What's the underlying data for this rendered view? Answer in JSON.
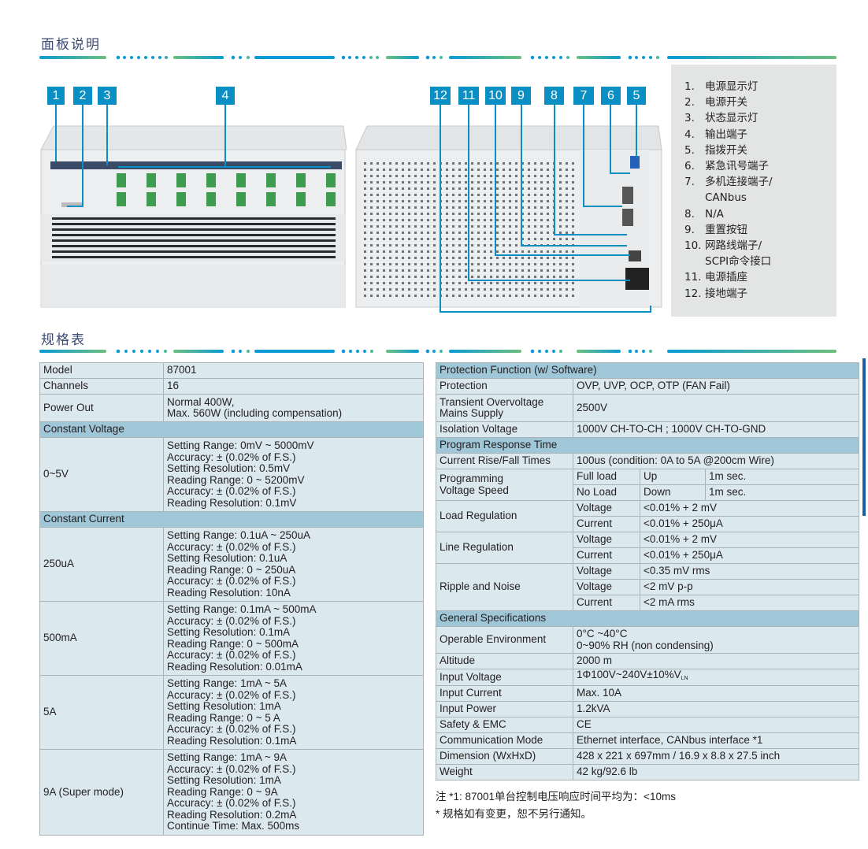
{
  "panel_section": {
    "title": "面板说明",
    "callouts": [
      "1",
      "2",
      "3",
      "4",
      "12",
      "11",
      "10",
      "9",
      "8",
      "7",
      "6",
      "5"
    ],
    "legend": [
      {
        "num": "1.",
        "text": "电源显示灯"
      },
      {
        "num": "2.",
        "text": "电源开关"
      },
      {
        "num": "3.",
        "text": "状态显示灯"
      },
      {
        "num": "4.",
        "text": "输出端子"
      },
      {
        "num": "5.",
        "text": "指拨开关"
      },
      {
        "num": "6.",
        "text": "紧急讯号端子"
      },
      {
        "num": "7.",
        "text": "多机连接端子/\nCANbus"
      },
      {
        "num": "8.",
        "text": "N/A"
      },
      {
        "num": "9.",
        "text": "重置按钮"
      },
      {
        "num": "10.",
        "text": "网路线端子/\nSCPI命令接口"
      },
      {
        "num": "11.",
        "text": "电源插座"
      },
      {
        "num": "12.",
        "text": "接地端子"
      }
    ]
  },
  "spec_section": {
    "title": "规格表",
    "left_table": [
      {
        "type": "row",
        "cells": [
          "Model",
          "87001"
        ]
      },
      {
        "type": "row",
        "cells": [
          "Channels",
          "16"
        ]
      },
      {
        "type": "row",
        "cells": [
          "Power Out",
          "Normal 400W,\nMax. 560W (including compensation)"
        ]
      },
      {
        "type": "header",
        "cells": [
          "Constant Voltage"
        ]
      },
      {
        "type": "row",
        "cells": [
          "0~5V",
          "Setting Range: 0mV ~ 5000mV\nAccuracy: ± (0.02% of F.S.)\nSetting Resolution: 0.5mV\nReading Range: 0 ~ 5200mV\nAccuracy: ± (0.02% of F.S.)\nReading Resolution: 0.1mV"
        ]
      },
      {
        "type": "header",
        "cells": [
          "Constant Current"
        ]
      },
      {
        "type": "row",
        "cells": [
          "250uA",
          "Setting Range: 0.1uA ~ 250uA\nAccuracy: ± (0.02% of F.S.)\nSetting Resolution: 0.1uA\nReading Range: 0 ~ 250uA\nAccuracy: ± (0.02% of F.S.)\nReading Resolution: 10nA"
        ]
      },
      {
        "type": "row",
        "cells": [
          "500mA",
          "Setting Range: 0.1mA ~ 500mA\nAccuracy: ± (0.02% of F.S.)\nSetting Resolution: 0.1mA\nReading Range: 0 ~ 500mA\nAccuracy: ± (0.02% of F.S.)\nReading Resolution: 0.01mA"
        ]
      },
      {
        "type": "row",
        "cells": [
          "5A",
          "Setting Range: 1mA ~ 5A\nAccuracy: ± (0.02% of F.S.)\nSetting Resolution: 1mA\nReading Range: 0 ~ 5 A\nAccuracy: ± (0.02% of F.S.)\nReading Resolution: 0.1mA"
        ]
      },
      {
        "type": "row",
        "cells": [
          "9A (Super mode)",
          "Setting Range: 1mA ~ 9A\nAccuracy: ± (0.02% of F.S.)\nSetting Resolution: 1mA\nReading Range: 0 ~ 9A\nAccuracy: ± (0.02% of F.S.)\nReading Resolution: 0.2mA\nContinue Time: Max. 500ms"
        ]
      }
    ],
    "right_table": {
      "protection_header": "Protection Function (w/ Software)",
      "protection": [
        "Protection",
        "OVP, UVP, OCP, OTP (FAN Fail)"
      ],
      "transient": [
        "Transient Overvoltage\nMains Supply",
        "2500V"
      ],
      "isolation": [
        "Isolation Voltage",
        "1000V CH-TO-CH ; 1000V CH-TO-GND"
      ],
      "response_header": "Program Response Time",
      "rise_fall": [
        "Current Rise/Fall Times",
        "100us (condition: 0A to 5A @200cm Wire)"
      ],
      "prog_speed_label": "Programming\nVoltage Speed",
      "prog_speed_rows": [
        [
          "Full load",
          "Up",
          "1m sec."
        ],
        [
          "No Load",
          "Down",
          "1m sec."
        ]
      ],
      "load_reg_label": "Load Regulation",
      "load_reg_rows": [
        [
          "Voltage",
          "<0.01% + 2 mV"
        ],
        [
          "Current",
          "<0.01% + 250μA"
        ]
      ],
      "line_reg_label": "Line Regulation",
      "line_reg_rows": [
        [
          "Voltage",
          "<0.01% + 2 mV"
        ],
        [
          "Current",
          "<0.01% + 250μA"
        ]
      ],
      "ripple_label": "Ripple and Noise",
      "ripple_rows": [
        [
          "Voltage",
          "<0.35 mV rms"
        ],
        [
          "Voltage",
          "<2 mV p-p"
        ],
        [
          "Current",
          "<2 mA rms"
        ]
      ],
      "general_header": "General Specifications",
      "general_rows": [
        [
          "Operable Environment",
          "0°C ~40°C\n0~90% RH (non condensing)"
        ],
        [
          "Altitude",
          "2000 m"
        ],
        [
          "Input Voltage",
          "1Φ100V~240V±10%V"
        ],
        [
          "Input Current",
          "Max. 10A"
        ],
        [
          "Input Power",
          "1.2kVA"
        ],
        [
          "Safety & EMC",
          "CE"
        ],
        [
          "Communication Mode",
          "Ethernet interface, CANbus interface *1"
        ],
        [
          "Dimension (WxHxD)",
          "428 x 221 x 697mm / 16.9 x 8.8 x 27.5 inch"
        ],
        [
          "Weight",
          "42 kg/92.6 lb"
        ]
      ],
      "input_voltage_subscript": "LN"
    },
    "notes": [
      "注 *1: 87001单台控制电压响应时间平均为：<10ms",
      "* 规格如有变更，恕不另行通知。"
    ]
  },
  "colors": {
    "accent": "#0a8fc4",
    "header_row": "#9fc7d7",
    "data_row": "#dbe8ee",
    "title": "#3a4a72",
    "legend_bg": "#e3e5e5"
  }
}
